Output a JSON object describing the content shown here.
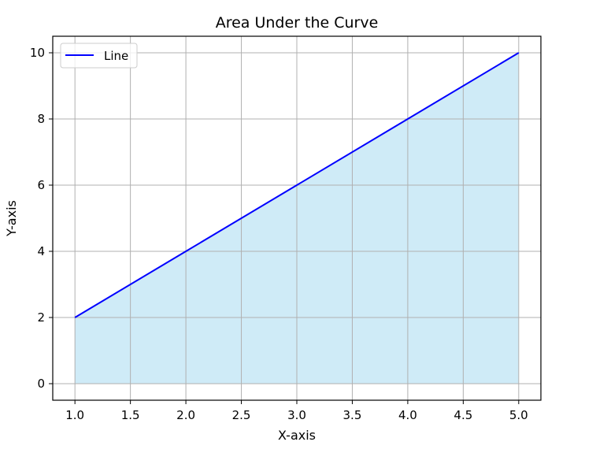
{
  "chart_data": {
    "type": "area",
    "title": "Area Under the Curve",
    "xlabel": "X-axis",
    "ylabel": "Y-axis",
    "x": [
      1,
      2,
      3,
      4,
      5
    ],
    "series": [
      {
        "name": "Line",
        "values": [
          2,
          4,
          6,
          8,
          10
        ],
        "color": "#0000ff",
        "fill": "#87ceeb"
      }
    ],
    "xlim": [
      0.8,
      5.2
    ],
    "ylim": [
      -0.5,
      10.5
    ],
    "xticks": [
      1.0,
      1.5,
      2.0,
      2.5,
      3.0,
      3.5,
      4.0,
      4.5,
      5.0
    ],
    "xtick_labels": [
      "1.0",
      "1.5",
      "2.0",
      "2.5",
      "3.0",
      "3.5",
      "4.0",
      "4.5",
      "5.0"
    ],
    "yticks": [
      0,
      2,
      4,
      6,
      8,
      10
    ],
    "ytick_labels": [
      "0",
      "2",
      "4",
      "6",
      "8",
      "10"
    ],
    "grid": true,
    "legend_position": "top-left"
  }
}
